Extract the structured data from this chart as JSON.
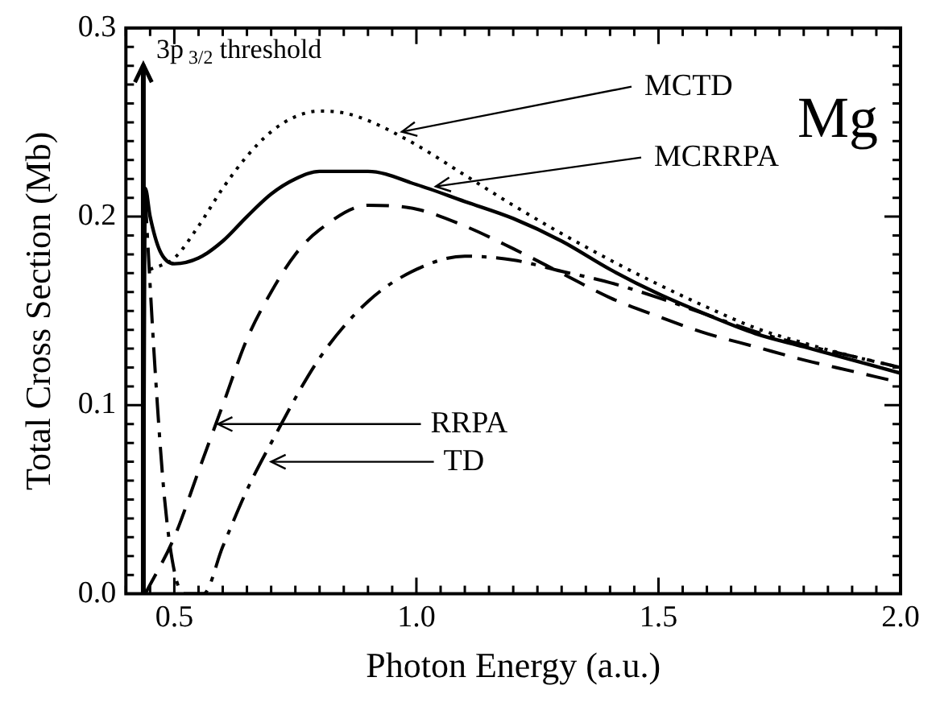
{
  "chart_data": {
    "type": "line",
    "xlabel": "Photon Energy (a.u.)",
    "ylabel": "Total Cross Section (Mb)",
    "xlim": [
      0.4,
      2.0
    ],
    "xticks": [
      0.5,
      {
        "value": 1.0,
        "label": "1.0"
      },
      1.5,
      {
        "value": 2.0,
        "label": "2.0"
      }
    ],
    "ylim": [
      0,
      0.3
    ],
    "yticks": [
      {
        "value": 0,
        "label": "0.0"
      },
      0.1,
      0.2,
      0.3
    ],
    "grid": false,
    "legend": false,
    "marker": "none",
    "series": [
      {
        "color": "#000000",
        "line_style": "solid",
        "x": [
          0.436,
          0.44,
          0.45,
          0.47,
          0.5,
          0.55,
          0.6,
          0.65,
          0.7,
          0.75,
          0.8,
          0.9,
          1.0,
          1.1,
          1.2,
          1.3,
          1.4,
          1.5,
          1.6,
          1.7,
          1.8,
          1.9,
          2.0
        ],
        "values": [
          0.0,
          0.215,
          0.2,
          0.182,
          0.175,
          0.178,
          0.187,
          0.2,
          0.212,
          0.22,
          0.224,
          0.224,
          0.217,
          0.208,
          0.199,
          0.187,
          0.172,
          0.159,
          0.148,
          0.138,
          0.131,
          0.124,
          0.117
        ]
      },
      {
        "color": "#000000",
        "line_style": "dotted",
        "x": [
          0.45,
          0.5,
          0.55,
          0.6,
          0.65,
          0.7,
          0.75,
          0.8,
          0.85,
          0.9,
          1.0,
          1.1,
          1.2,
          1.3,
          1.4,
          1.5,
          1.6,
          1.7,
          1.8,
          1.9,
          2.0
        ],
        "values": [
          0.172,
          0.178,
          0.195,
          0.215,
          0.232,
          0.245,
          0.253,
          0.256,
          0.255,
          0.251,
          0.238,
          0.222,
          0.206,
          0.191,
          0.177,
          0.164,
          0.152,
          0.141,
          0.133,
          0.126,
          0.12
        ]
      },
      {
        "color": "#000000",
        "line_style": "dashed",
        "x": [
          0.44,
          0.5,
          0.55,
          0.6,
          0.65,
          0.7,
          0.75,
          0.8,
          0.9,
          1.0,
          1.1,
          1.2,
          1.3,
          1.4,
          1.5,
          1.6,
          1.7,
          1.8,
          1.9,
          2.0
        ],
        "values": [
          0.0,
          0.03,
          0.065,
          0.1,
          0.135,
          0.16,
          0.18,
          0.193,
          0.206,
          0.204,
          0.195,
          0.183,
          0.17,
          0.157,
          0.147,
          0.138,
          0.131,
          0.124,
          0.118,
          0.112
        ]
      },
      {
        "color": "#000000",
        "line_style": "dashdot",
        "x": [
          0.44,
          0.46,
          0.48,
          0.5,
          0.52,
          0.56,
          0.6,
          0.65,
          0.7,
          0.8,
          0.9,
          1.0,
          1.1,
          1.2,
          1.3,
          1.4,
          1.5,
          1.6,
          1.7,
          1.8,
          1.9,
          2.0
        ],
        "values": [
          0.21,
          0.12,
          0.05,
          0.012,
          0.0,
          0.0,
          0.025,
          0.055,
          0.08,
          0.125,
          0.155,
          0.172,
          0.179,
          0.177,
          0.171,
          0.165,
          0.157,
          0.148,
          0.139,
          0.132,
          0.126,
          0.12
        ]
      }
    ],
    "ref_lines": [
      {
        "axis": "x",
        "value": 0.436,
        "label": "3p$_{3/2}$ threshold"
      }
    ],
    "annotations": [
      {
        "text": "MCTD",
        "x": 0.96,
        "y": 0.245
      },
      {
        "text": "MCRRPA",
        "x": 1.03,
        "y": 0.216
      },
      {
        "text": "RRPA",
        "x": 0.58,
        "y": 0.09
      },
      {
        "text": "TD",
        "x": 0.69,
        "y": 0.07
      },
      "Mg"
    ]
  }
}
